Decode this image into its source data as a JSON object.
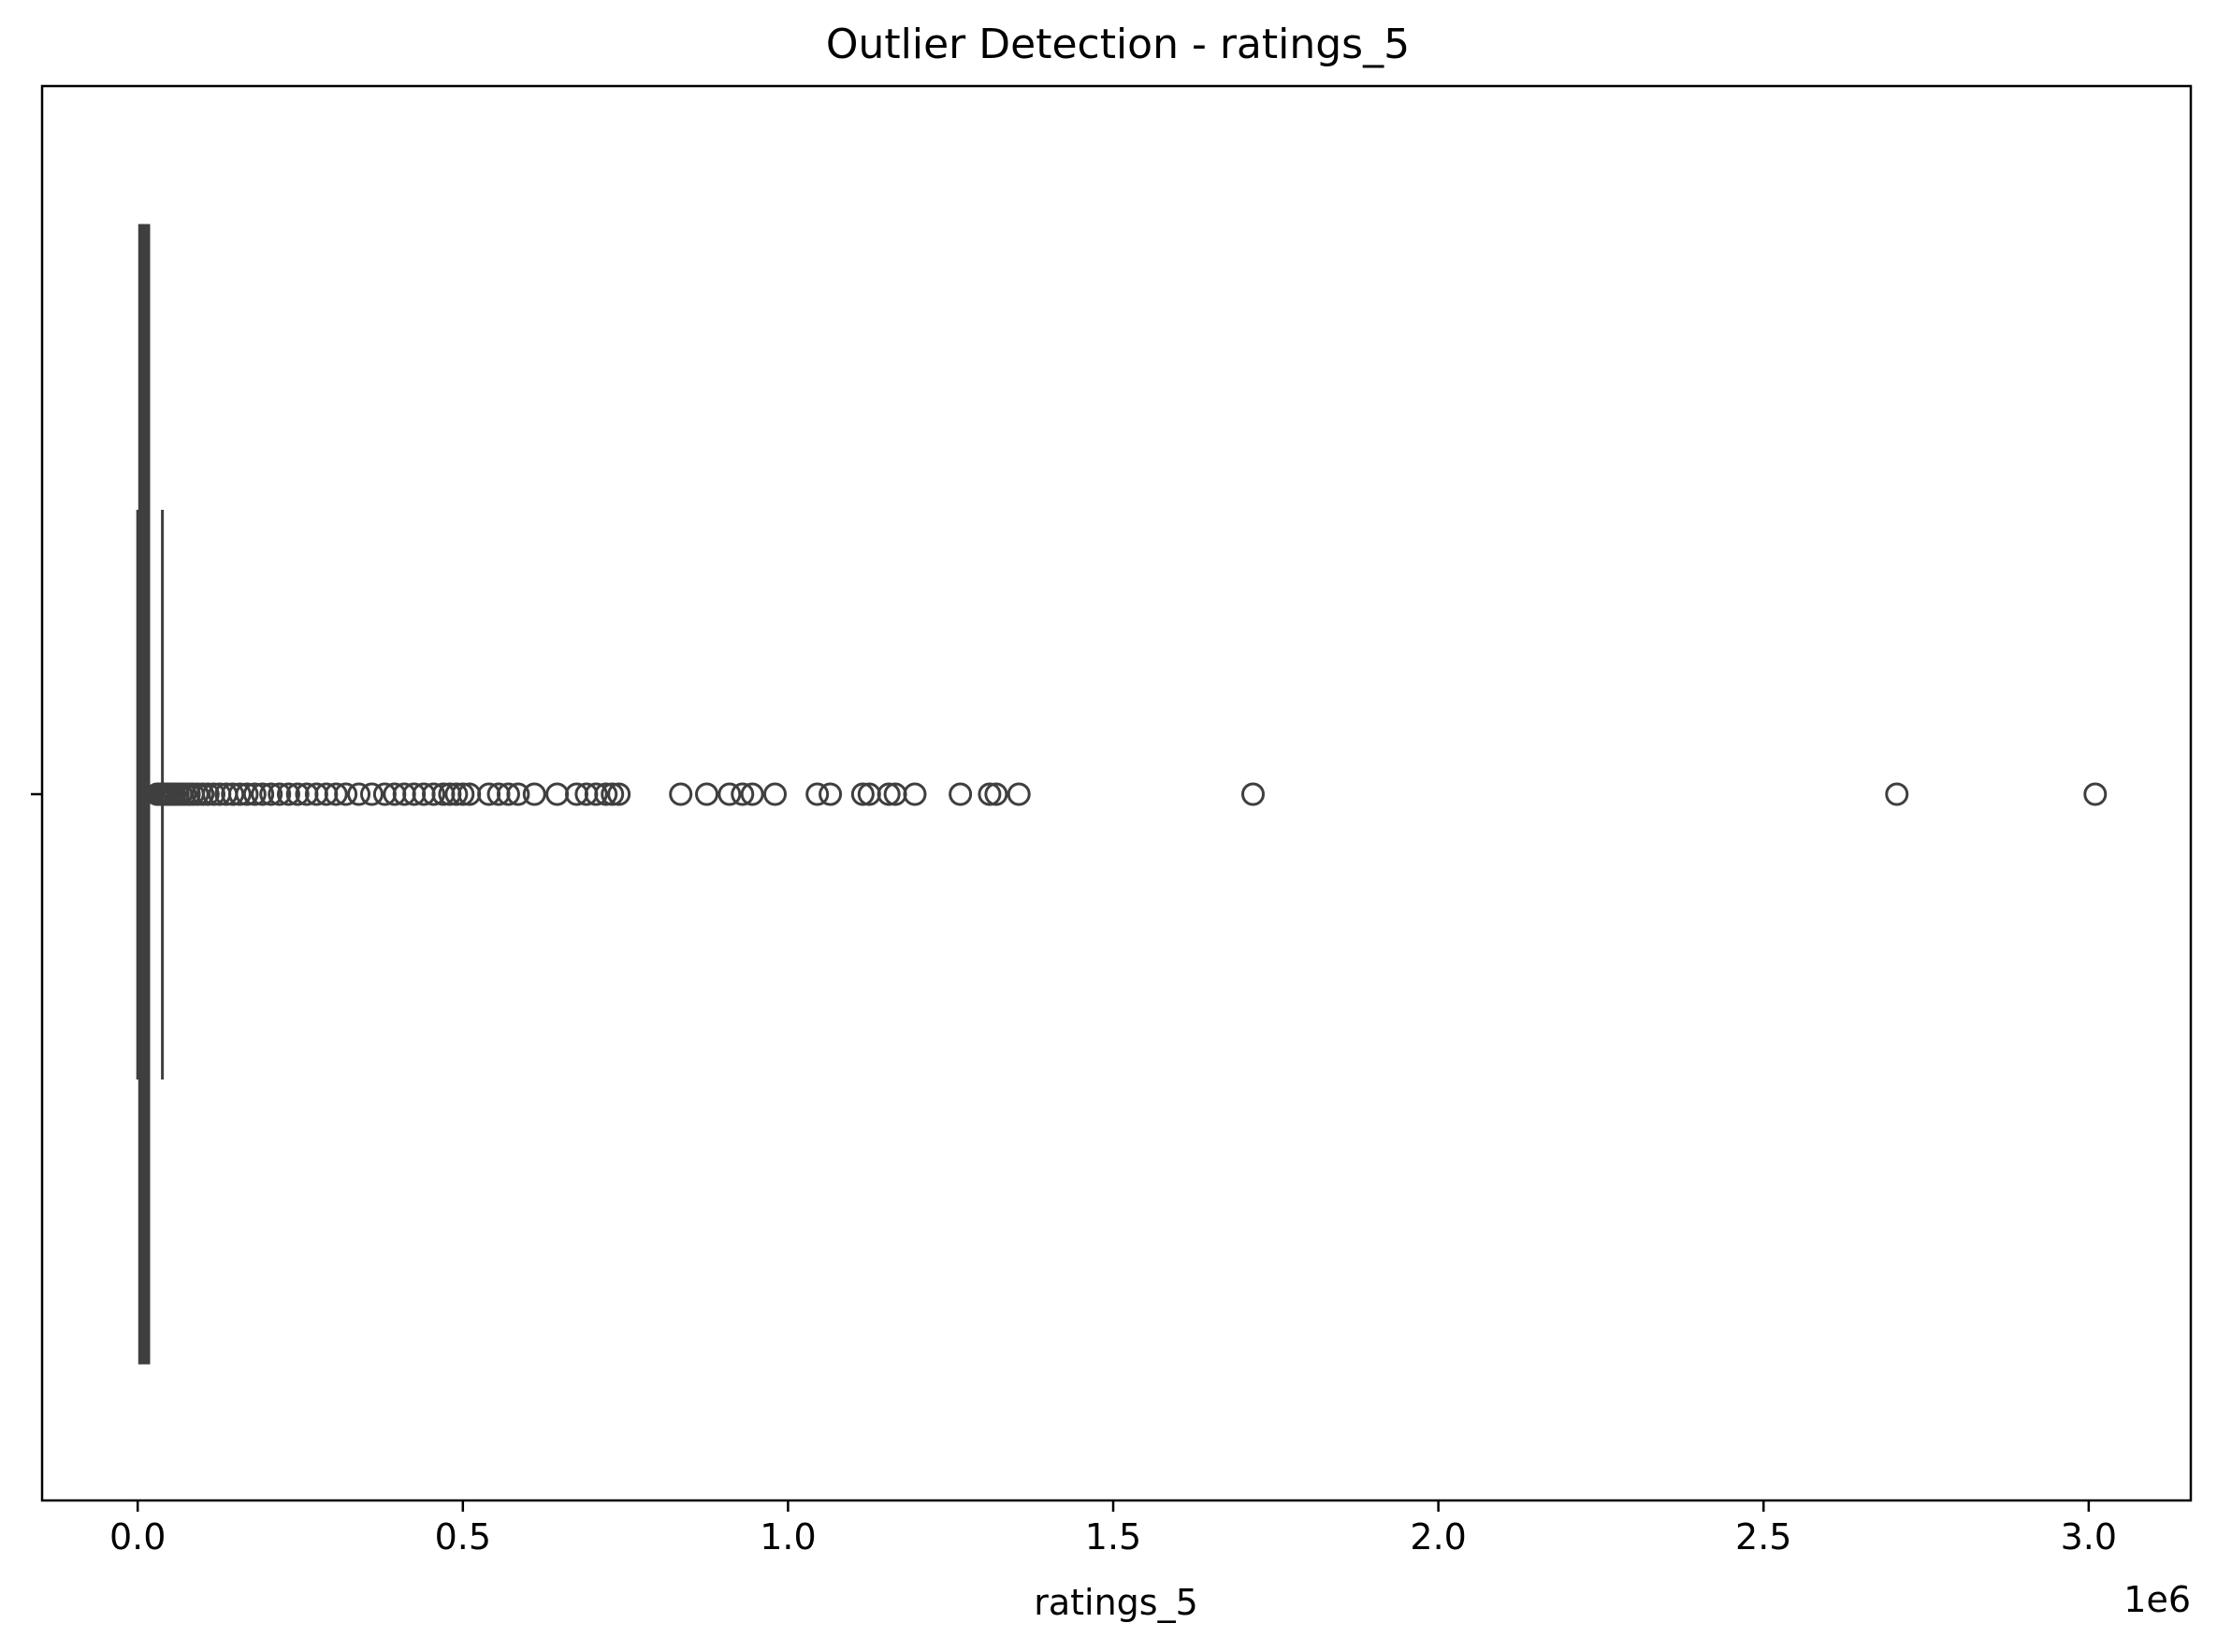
{
  "chart_data": {
    "type": "boxplot",
    "title": "Outlier Detection - ratings_5",
    "xlabel": "ratings_5",
    "ylabel": "",
    "offset_label": "1e6",
    "xlim": [
      -147000,
      3157000
    ],
    "xticks": [
      0.0,
      0.5,
      1.0,
      1.5,
      2.0,
      2.5,
      3.0
    ],
    "xtick_labels": [
      "0.0",
      "0.5",
      "1.0",
      "1.5",
      "2.0",
      "2.5",
      "3.0"
    ],
    "x_multiplier": 1000000,
    "grid": false,
    "box": {
      "min": 0,
      "q1": 3000,
      "median": 8000,
      "q3": 17000,
      "max": 38000
    },
    "outliers": [
      30000,
      33000,
      36000,
      40000,
      44000,
      48000,
      52000,
      57000,
      62000,
      67000,
      73000,
      79000,
      85000,
      92000,
      100000,
      108000,
      117000,
      126000,
      136000,
      146000,
      157000,
      168000,
      180000,
      192000,
      205000,
      218000,
      232000,
      246000,
      260000,
      275000,
      290000,
      305000,
      320000,
      340000,
      360000,
      380000,
      395000,
      410000,
      425000,
      440000,
      455000,
      470000,
      480000,
      490000,
      500000,
      510000,
      540000,
      555000,
      570000,
      585000,
      610000,
      645000,
      675000,
      690000,
      705000,
      720000,
      730000,
      740000,
      835000,
      875000,
      910000,
      930000,
      945000,
      980000,
      1045000,
      1065000,
      1115000,
      1125000,
      1155000,
      1165000,
      1195000,
      1265000,
      1310000,
      1320000,
      1355000,
      1715000,
      2705000,
      3010000
    ],
    "colors": {
      "box_stroke": "#3f3f3f",
      "box_fill": "#3f3f3f",
      "outlier_stroke": "#3f3f3f",
      "axis": "#000000"
    }
  }
}
